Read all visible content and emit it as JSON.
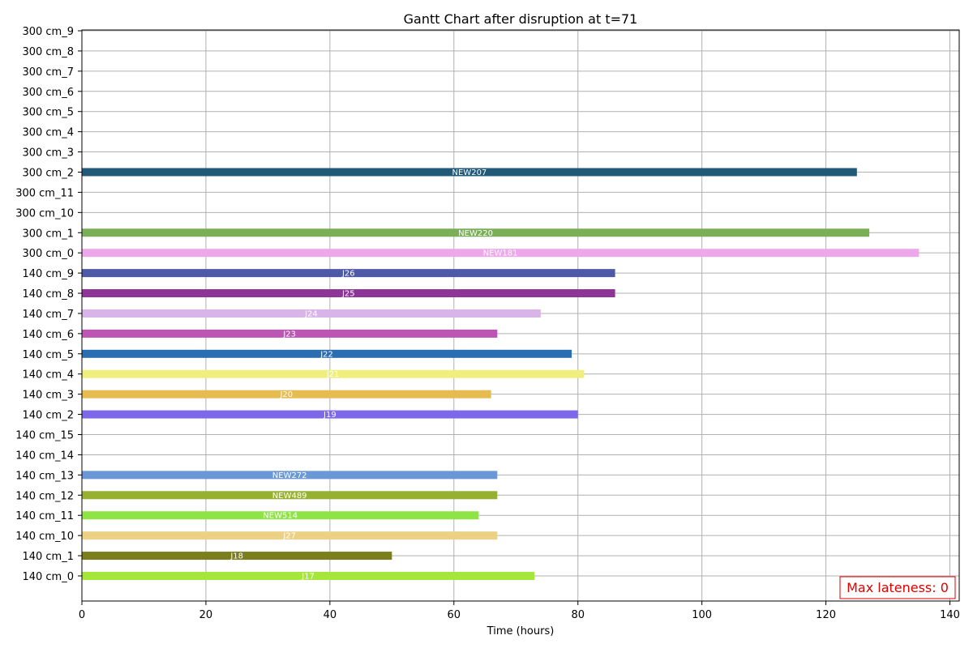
{
  "chart_data": {
    "type": "bar",
    "orientation": "horizontal",
    "title": "Gantt Chart after disruption at t=71",
    "xlabel": "Time (hours)",
    "ylabel": "",
    "xlim": [
      0,
      141.5
    ],
    "xticks": [
      0,
      20,
      40,
      60,
      80,
      100,
      120,
      140
    ],
    "grid": true,
    "annotation": {
      "text": "Max lateness: 0",
      "color": "#e00000",
      "placement": "bottom-right"
    },
    "rows": [
      {
        "machine": "300 cm_9",
        "job": "",
        "start": 0,
        "end": 0,
        "color": ""
      },
      {
        "machine": "300 cm_8",
        "job": "",
        "start": 0,
        "end": 0,
        "color": ""
      },
      {
        "machine": "300 cm_7",
        "job": "",
        "start": 0,
        "end": 0,
        "color": ""
      },
      {
        "machine": "300 cm_6",
        "job": "",
        "start": 0,
        "end": 0,
        "color": ""
      },
      {
        "machine": "300 cm_5",
        "job": "",
        "start": 0,
        "end": 0,
        "color": ""
      },
      {
        "machine": "300 cm_4",
        "job": "",
        "start": 0,
        "end": 0,
        "color": ""
      },
      {
        "machine": "300 cm_3",
        "job": "",
        "start": 0,
        "end": 0,
        "color": ""
      },
      {
        "machine": "300 cm_2",
        "job": "NEW207",
        "start": 0,
        "end": 125,
        "color": "#215a78"
      },
      {
        "machine": "300 cm_11",
        "job": "",
        "start": 0,
        "end": 0,
        "color": ""
      },
      {
        "machine": "300 cm_10",
        "job": "",
        "start": 0,
        "end": 0,
        "color": ""
      },
      {
        "machine": "300 cm_1",
        "job": "NEW220",
        "start": 0,
        "end": 127,
        "color": "#7aaf58"
      },
      {
        "machine": "300 cm_0",
        "job": "NEW181",
        "start": 0,
        "end": 135,
        "color": "#eda8eb"
      },
      {
        "machine": "140 cm_9",
        "job": "J26",
        "start": 0,
        "end": 86,
        "color": "#4e59a8"
      },
      {
        "machine": "140 cm_8",
        "job": "J25",
        "start": 0,
        "end": 86,
        "color": "#8e3598"
      },
      {
        "machine": "140 cm_7",
        "job": "J24",
        "start": 0,
        "end": 74,
        "color": "#d8b4e8"
      },
      {
        "machine": "140 cm_6",
        "job": "J23",
        "start": 0,
        "end": 67,
        "color": "#bd55b5"
      },
      {
        "machine": "140 cm_5",
        "job": "J22",
        "start": 0,
        "end": 79,
        "color": "#2a6db0"
      },
      {
        "machine": "140 cm_4",
        "job": "J21",
        "start": 0,
        "end": 81,
        "color": "#f0ef7e"
      },
      {
        "machine": "140 cm_3",
        "job": "J20",
        "start": 0,
        "end": 66,
        "color": "#e6bc50"
      },
      {
        "machine": "140 cm_2",
        "job": "J19",
        "start": 0,
        "end": 80,
        "color": "#7e68ea"
      },
      {
        "machine": "140 cm_15",
        "job": "",
        "start": 0,
        "end": 0,
        "color": ""
      },
      {
        "machine": "140 cm_14",
        "job": "",
        "start": 0,
        "end": 0,
        "color": ""
      },
      {
        "machine": "140 cm_13",
        "job": "NEW272",
        "start": 0,
        "end": 67,
        "color": "#6a97d5"
      },
      {
        "machine": "140 cm_12",
        "job": "NEW489",
        "start": 0,
        "end": 67,
        "color": "#96b032"
      },
      {
        "machine": "140 cm_11",
        "job": "NEW514",
        "start": 0,
        "end": 64,
        "color": "#8ee444"
      },
      {
        "machine": "140 cm_10",
        "job": "J27",
        "start": 0,
        "end": 67,
        "color": "#ecd185"
      },
      {
        "machine": "140 cm_1",
        "job": "J18",
        "start": 0,
        "end": 50,
        "color": "#7a7e1c"
      },
      {
        "machine": "140 cm_0",
        "job": "J17",
        "start": 0,
        "end": 73,
        "color": "#a4e63a"
      }
    ]
  }
}
